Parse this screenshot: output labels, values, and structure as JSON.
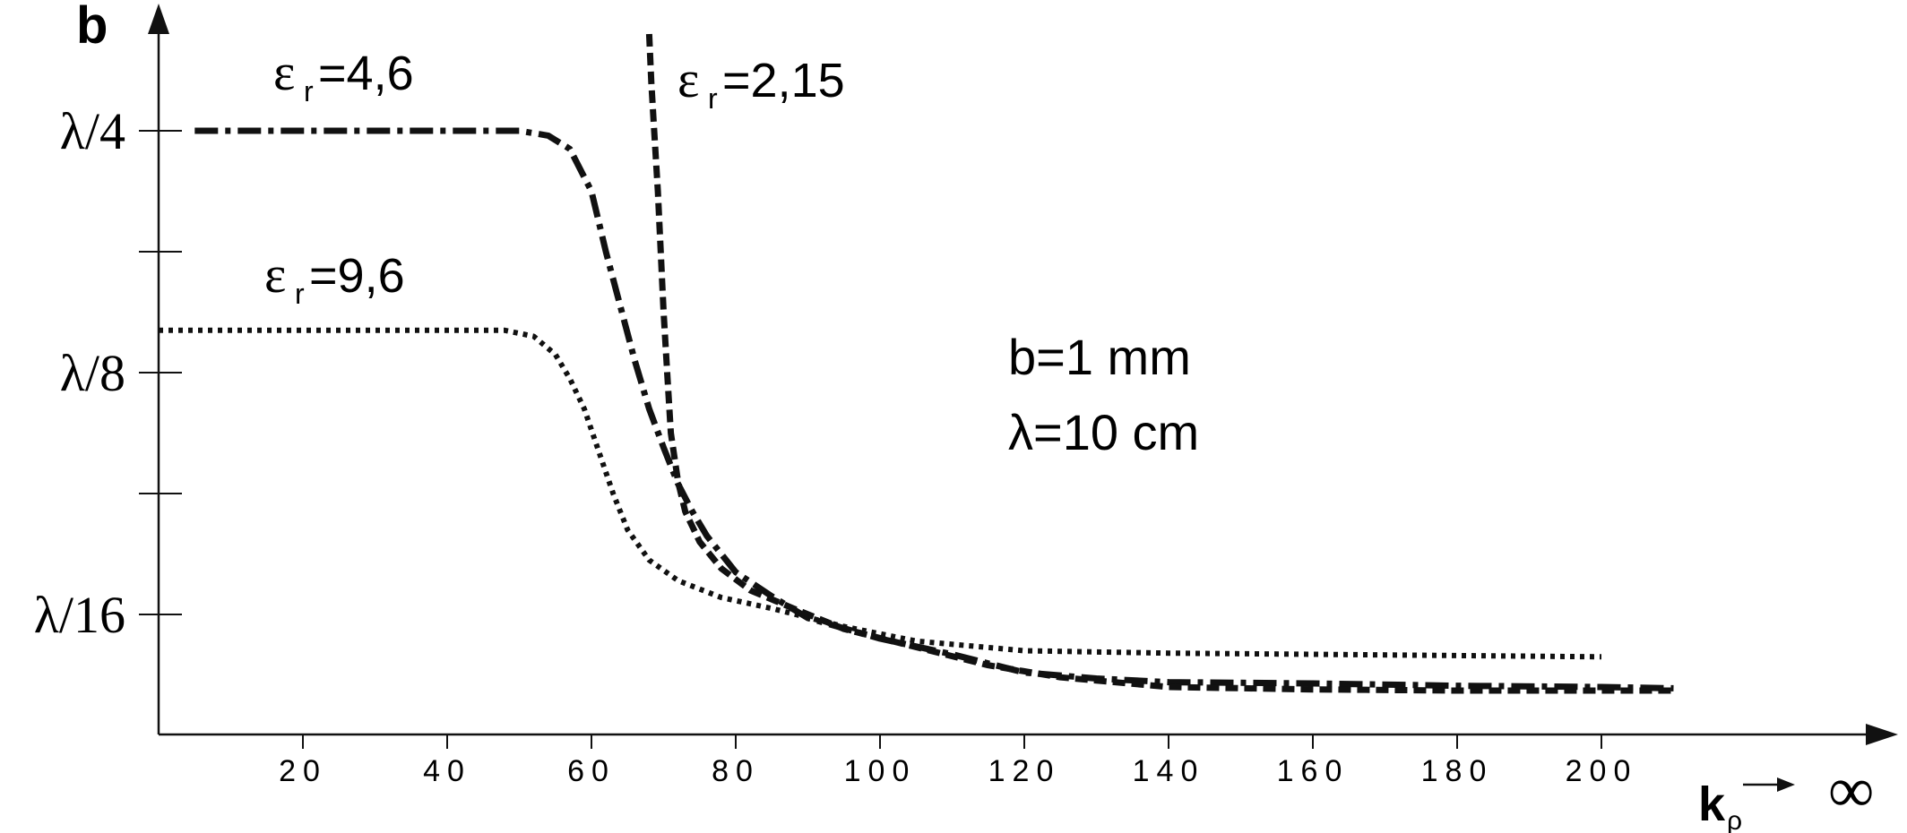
{
  "chart_data": {
    "type": "line",
    "ylabel": "b",
    "xlabel_main": "k",
    "xlabel_sub": "ρ",
    "x_infinity": "∞",
    "x_ticks": [
      20,
      40,
      60,
      80,
      100,
      120,
      140,
      160,
      180,
      200
    ],
    "y_ticks": [
      {
        "label": "λ/4",
        "value": 4
      },
      {
        "label": "",
        "value": 3
      },
      {
        "label": "λ/8",
        "value": 2
      },
      {
        "label": "",
        "value": 1
      },
      {
        "label": "λ/16",
        "value": 0
      }
    ],
    "xlim": [
      0,
      240
    ],
    "ylim": [
      -1,
      5
    ],
    "grid": false,
    "annotation_lines": [
      "b=1 mm",
      "λ=10 cm"
    ],
    "series": [
      {
        "label_base": "ε",
        "label_sub": "r",
        "label_value": "=4,6",
        "style": "dashdot",
        "color": "#111111",
        "points": [
          [
            5,
            4.0
          ],
          [
            30,
            4.0
          ],
          [
            50,
            4.0
          ],
          [
            54,
            3.96
          ],
          [
            57,
            3.85
          ],
          [
            60,
            3.5
          ],
          [
            62,
            3.0
          ],
          [
            64,
            2.55
          ],
          [
            66,
            2.1
          ],
          [
            68,
            1.7
          ],
          [
            70,
            1.38
          ],
          [
            72,
            1.08
          ],
          [
            74,
            0.85
          ],
          [
            76,
            0.65
          ],
          [
            80,
            0.35
          ],
          [
            85,
            0.15
          ],
          [
            90,
            -0.03
          ],
          [
            100,
            -0.2
          ],
          [
            110,
            -0.33
          ],
          [
            120,
            -0.48
          ],
          [
            130,
            -0.53
          ],
          [
            140,
            -0.56
          ],
          [
            160,
            -0.57
          ],
          [
            180,
            -0.59
          ],
          [
            200,
            -0.6
          ],
          [
            210,
            -0.61
          ]
        ]
      },
      {
        "label_base": "ε",
        "label_sub": "r",
        "label_value": "=2,15",
        "style": "dashed",
        "color": "#111111",
        "points": [
          [
            68,
            4.8
          ],
          [
            68.3,
            4.4
          ],
          [
            68.7,
            4.0
          ],
          [
            69.2,
            3.5
          ],
          [
            69.6,
            3.0
          ],
          [
            70,
            2.5
          ],
          [
            70.5,
            2.0
          ],
          [
            71,
            1.5
          ],
          [
            72,
            1.1
          ],
          [
            73,
            0.85
          ],
          [
            75,
            0.6
          ],
          [
            78,
            0.38
          ],
          [
            82,
            0.2
          ],
          [
            88,
            0.05
          ],
          [
            95,
            -0.12
          ],
          [
            105,
            -0.27
          ],
          [
            115,
            -0.42
          ],
          [
            125,
            -0.52
          ],
          [
            140,
            -0.6
          ],
          [
            160,
            -0.62
          ],
          [
            180,
            -0.63
          ],
          [
            200,
            -0.63
          ],
          [
            210,
            -0.63
          ]
        ]
      },
      {
        "label_base": "ε",
        "label_sub": "r",
        "label_value": "=9,6",
        "style": "dotted",
        "color": "#111111",
        "points": [
          [
            0,
            2.35
          ],
          [
            30,
            2.35
          ],
          [
            48,
            2.35
          ],
          [
            52,
            2.3
          ],
          [
            55,
            2.15
          ],
          [
            57,
            1.95
          ],
          [
            59,
            1.7
          ],
          [
            61,
            1.35
          ],
          [
            63,
            1.0
          ],
          [
            65,
            0.7
          ],
          [
            68,
            0.45
          ],
          [
            72,
            0.28
          ],
          [
            78,
            0.14
          ],
          [
            85,
            0.05
          ],
          [
            95,
            -0.1
          ],
          [
            105,
            -0.22
          ],
          [
            120,
            -0.3
          ],
          [
            140,
            -0.32
          ],
          [
            160,
            -0.33
          ],
          [
            180,
            -0.34
          ],
          [
            200,
            -0.35
          ]
        ]
      }
    ]
  }
}
